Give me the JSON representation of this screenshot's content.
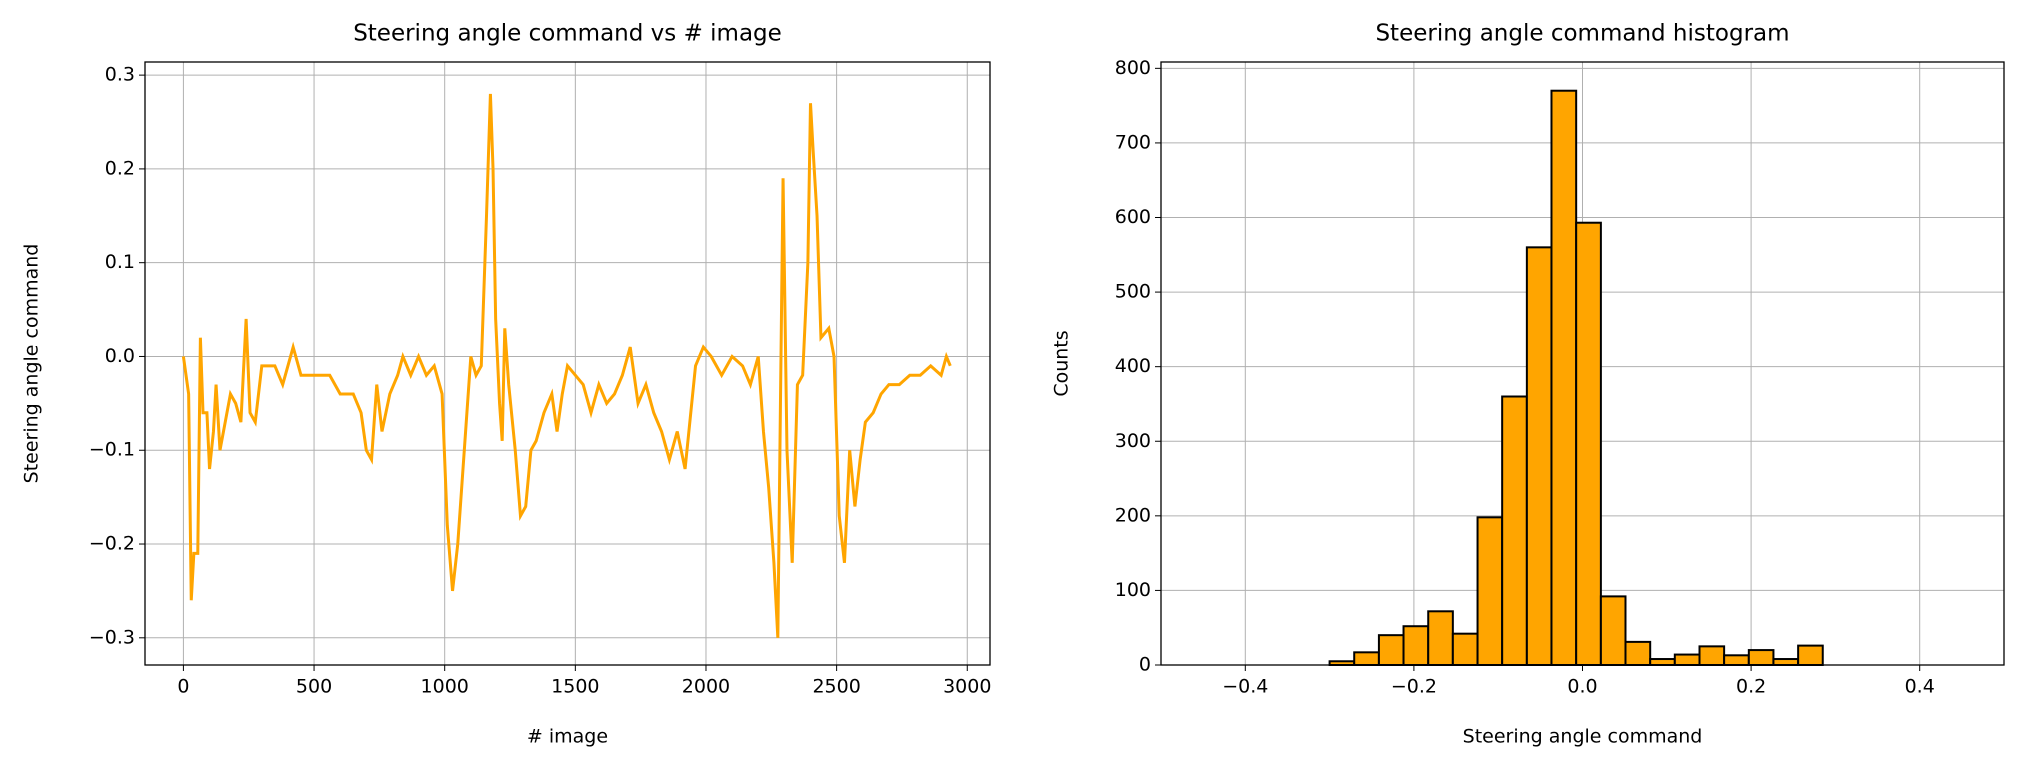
{
  "chart_data": [
    {
      "type": "line",
      "title": "Steering angle command vs # image",
      "xlabel": "# image",
      "ylabel": "Steering angle command",
      "color": "#ffa500",
      "grid": true,
      "x": [
        0,
        20,
        30,
        40,
        55,
        65,
        75,
        90,
        100,
        115,
        125,
        140,
        160,
        180,
        200,
        220,
        240,
        255,
        275,
        300,
        350,
        380,
        420,
        450,
        480,
        520,
        560,
        600,
        650,
        680,
        700,
        720,
        740,
        760,
        790,
        820,
        840,
        870,
        900,
        930,
        960,
        990,
        1010,
        1030,
        1050,
        1080,
        1100,
        1120,
        1140,
        1160,
        1175,
        1185,
        1195,
        1210,
        1220,
        1230,
        1245,
        1270,
        1290,
        1310,
        1330,
        1350,
        1380,
        1410,
        1430,
        1450,
        1470,
        1500,
        1530,
        1560,
        1590,
        1620,
        1650,
        1680,
        1710,
        1740,
        1770,
        1800,
        1830,
        1860,
        1890,
        1920,
        1960,
        1990,
        2020,
        2060,
        2100,
        2140,
        2170,
        2200,
        2220,
        2240,
        2260,
        2275,
        2285,
        2295,
        2310,
        2330,
        2350,
        2370,
        2390,
        2400,
        2410,
        2425,
        2440,
        2470,
        2490,
        2510,
        2530,
        2550,
        2570,
        2590,
        2610,
        2640,
        2670,
        2700,
        2740,
        2780,
        2820,
        2860,
        2900,
        2920,
        2935
      ],
      "values": [
        0,
        -0.04,
        -0.26,
        -0.21,
        -0.21,
        0.02,
        -0.06,
        -0.06,
        -0.12,
        -0.08,
        -0.03,
        -0.1,
        -0.07,
        -0.04,
        -0.05,
        -0.07,
        0.04,
        -0.06,
        -0.07,
        -0.01,
        -0.01,
        -0.03,
        0.01,
        -0.02,
        -0.02,
        -0.02,
        -0.02,
        -0.04,
        -0.04,
        -0.06,
        -0.1,
        -0.11,
        -0.03,
        -0.08,
        -0.04,
        -0.02,
        0,
        -0.02,
        0,
        -0.02,
        -0.01,
        -0.04,
        -0.18,
        -0.25,
        -0.2,
        -0.08,
        0,
        -0.02,
        -0.01,
        0.15,
        0.28,
        0.2,
        0.04,
        -0.05,
        -0.09,
        0.03,
        -0.03,
        -0.1,
        -0.17,
        -0.16,
        -0.1,
        -0.09,
        -0.06,
        -0.04,
        -0.08,
        -0.04,
        -0.01,
        -0.02,
        -0.03,
        -0.06,
        -0.03,
        -0.05,
        -0.04,
        -0.02,
        0.01,
        -0.05,
        -0.03,
        -0.06,
        -0.08,
        -0.11,
        -0.08,
        -0.12,
        -0.01,
        0.01,
        0,
        -0.02,
        0,
        -0.01,
        -0.03,
        0,
        -0.08,
        -0.14,
        -0.22,
        -0.3,
        -0.05,
        0.19,
        -0.1,
        -0.22,
        -0.03,
        -0.02,
        0.1,
        0.27,
        0.22,
        0.15,
        0.02,
        0.03,
        0,
        -0.17,
        -0.22,
        -0.1,
        -0.16,
        -0.11,
        -0.07,
        -0.06,
        -0.04,
        -0.03,
        -0.03,
        -0.02,
        -0.02,
        -0.01,
        -0.02,
        0,
        -0.01
      ],
      "xlim": [
        -147,
        3087
      ],
      "ylim": [
        -0.329,
        0.314
      ],
      "xticks": [
        0,
        500,
        1000,
        1500,
        2000,
        2500,
        3000
      ],
      "yticks": [
        {
          "value": -0.3,
          "label": "−0.3"
        },
        {
          "value": -0.2,
          "label": "−0.2"
        },
        {
          "value": -0.1,
          "label": "−0.1"
        },
        {
          "value": 0,
          "label": "0.0"
        },
        0.1,
        0.2,
        0.3
      ]
    },
    {
      "type": "histogram",
      "title": "Steering angle command histogram",
      "xlabel": "Steering angle command",
      "ylabel": "Counts",
      "color": "#ffa500",
      "edgecolor": "#000000",
      "grid": true,
      "bins": [
        -0.3,
        -0.2708,
        -0.2415,
        -0.2123,
        -0.183,
        -0.1538,
        -0.1245,
        -0.0953,
        -0.066,
        -0.0368,
        -0.0075,
        0.0218,
        0.051,
        0.0803,
        0.1095,
        0.1388,
        0.168,
        0.1973,
        0.2265,
        0.2558,
        0.285
      ],
      "values": [
        5,
        17,
        40,
        52,
        72,
        42,
        198,
        360,
        560,
        770,
        593,
        92,
        31,
        8,
        14,
        25,
        13,
        20,
        8,
        26
      ],
      "xlim": [
        -0.5,
        0.5
      ],
      "ylim": [
        0,
        808.5
      ],
      "xticks": [
        {
          "value": -0.4,
          "label": "−0.4"
        },
        {
          "value": -0.2,
          "label": "−0.2"
        },
        {
          "value": 0,
          "label": "0.0"
        },
        0.2,
        0.4
      ],
      "yticks": [
        0,
        100,
        200,
        300,
        400,
        500,
        600,
        700,
        800
      ]
    }
  ]
}
